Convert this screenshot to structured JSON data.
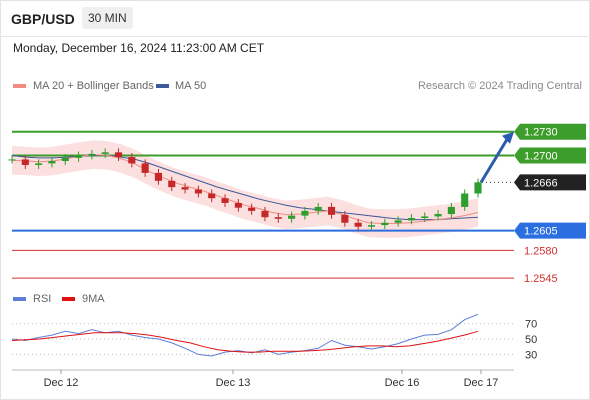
{
  "header": {
    "symbol": "GBP/USD",
    "timeframe": "30 MIN",
    "datetime": "Monday, December 16, 2024 11:23:00 AM CET"
  },
  "legend": {
    "bb_label": "MA 20 + Bollinger Bands",
    "bb_color": "#f28b82",
    "ma50_label": "MA 50",
    "ma50_color": "#3d5a98",
    "credit": "Research © 2024 Trading Central"
  },
  "rsi_legend": {
    "rsi_label": "RSI",
    "rsi_color": "#5b7fd6",
    "ma_label": "9MA",
    "ma_color": "#e01010"
  },
  "chart_data": [
    {
      "type": "candlestick",
      "title": "GBP/USD 30 MIN",
      "x_ticks": [
        "Dec 12",
        "Dec 13",
        "Dec 16",
        "Dec 17"
      ],
      "price_range": [
        1.253,
        1.276
      ],
      "levels": [
        {
          "value": 1.273,
          "label": "1.2730",
          "kind": "resistance",
          "color": "#3c9d2a"
        },
        {
          "value": 1.27,
          "label": "1.2700",
          "kind": "resistance",
          "color": "#3c9d2a"
        },
        {
          "value": 1.2666,
          "label": "1.2666",
          "kind": "last",
          "color": "#222222"
        },
        {
          "value": 1.2605,
          "label": "1.2605",
          "kind": "pivot",
          "color": "#2a6ee0"
        },
        {
          "value": 1.258,
          "label": "1.2580",
          "kind": "support",
          "color": "#d03030"
        },
        {
          "value": 1.2545,
          "label": "1.2545",
          "kind": "support",
          "color": "#d03030"
        }
      ],
      "close_path": [
        1.2695,
        1.2688,
        1.269,
        1.2693,
        1.2697,
        1.27,
        1.2702,
        1.2704,
        1.2698,
        1.269,
        1.2678,
        1.2668,
        1.266,
        1.2657,
        1.2652,
        1.2646,
        1.264,
        1.2634,
        1.263,
        1.2622,
        1.262,
        1.2624,
        1.263,
        1.2635,
        1.2625,
        1.2615,
        1.261,
        1.2612,
        1.2615,
        1.2618,
        1.2621,
        1.2623,
        1.2626,
        1.2635,
        1.2652,
        1.2666
      ],
      "ma20_path": [
        1.2694,
        1.2693,
        1.2692,
        1.2693,
        1.2696,
        1.2699,
        1.2701,
        1.27,
        1.2696,
        1.2689,
        1.268,
        1.2672,
        1.2665,
        1.266,
        1.2655,
        1.2649,
        1.2643,
        1.2637,
        1.2633,
        1.2628,
        1.2625,
        1.2626,
        1.2628,
        1.263,
        1.2626,
        1.262,
        1.2615,
        1.2614,
        1.2614,
        1.2615,
        1.2617,
        1.2619,
        1.2621,
        1.2624,
        1.2628
      ],
      "ma50_path": [
        1.27,
        1.2698,
        1.2697,
        1.2697,
        1.2698,
        1.2699,
        1.27,
        1.27,
        1.2698,
        1.2695,
        1.269,
        1.2684,
        1.2678,
        1.2672,
        1.2666,
        1.266,
        1.2655,
        1.265,
        1.2645,
        1.2641,
        1.2637,
        1.2634,
        1.2632,
        1.263,
        1.2628,
        1.2626,
        1.2624,
        1.2622,
        1.262,
        1.2619,
        1.2619,
        1.2619,
        1.262,
        1.2621,
        1.2622
      ],
      "band_width": 0.0018,
      "projection": {
        "from": 1.2666,
        "to": 1.273
      }
    },
    {
      "type": "line",
      "title": "RSI",
      "y_ticks": [
        70,
        50,
        30
      ],
      "ylim": [
        15,
        85
      ],
      "series": [
        {
          "name": "RSI",
          "values": [
            50,
            48,
            52,
            55,
            60,
            57,
            62,
            58,
            60,
            55,
            52,
            50,
            45,
            38,
            30,
            28,
            33,
            35,
            32,
            36,
            30,
            33,
            35,
            38,
            48,
            42,
            40,
            37,
            40,
            44,
            50,
            55,
            56,
            62,
            75,
            82
          ]
        },
        {
          "name": "9MA",
          "values": [
            48,
            49,
            50,
            52,
            54,
            56,
            58,
            58,
            58,
            57,
            55,
            52,
            48,
            45,
            40,
            36,
            34,
            33,
            33,
            34,
            34,
            34,
            35,
            36,
            38,
            40,
            41,
            41,
            40,
            41,
            44,
            47,
            51,
            55,
            60
          ]
        }
      ]
    }
  ]
}
